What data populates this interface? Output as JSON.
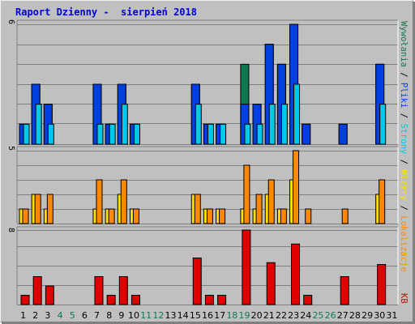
{
  "title": "Raport Dzienny -  sierpień 2018",
  "colors": {
    "background": "#c0c0c0",
    "title": "#0000d8",
    "wizyty": "#1e6e4e",
    "strony": "#00c8e8",
    "pliki": "#0040e0",
    "wywolania": "#0f7a4e",
    "lokalizacje": "#ffe000",
    "kb": "#e00000",
    "orange": "#ff8800"
  },
  "side_labels": {
    "wywolania": "Wywołania",
    "pliki": "Pliki",
    "strony": "Strony",
    "wizyty": "Wizyty",
    "lokalizacje": "Lokalizacje",
    "kb": "KB",
    "sep": "/"
  },
  "chart_data": [
    {
      "type": "bar",
      "panel": "top",
      "ymax_label": "6",
      "ylim": [
        0,
        6
      ],
      "categories": [
        "1",
        "2",
        "3",
        "4",
        "5",
        "6",
        "7",
        "8",
        "9",
        "10",
        "11",
        "12",
        "13",
        "14",
        "15",
        "16",
        "17",
        "18",
        "19",
        "20",
        "21",
        "22",
        "23",
        "24",
        "25",
        "26",
        "27",
        "28",
        "29",
        "30",
        "31"
      ],
      "weekend_days": [
        "4",
        "5",
        "11",
        "12",
        "18",
        "19",
        "25",
        "26"
      ],
      "series": [
        {
          "name": "Wywołania",
          "values": [
            1,
            3,
            2,
            0,
            0,
            0,
            3,
            1,
            3,
            1,
            0,
            0,
            0,
            0,
            3,
            1,
            1,
            0,
            4,
            2,
            5,
            4,
            6,
            1,
            0,
            0,
            1,
            0,
            0,
            4,
            0
          ]
        },
        {
          "name": "Pliki",
          "values": [
            1,
            3,
            2,
            0,
            0,
            0,
            3,
            1,
            3,
            1,
            0,
            0,
            0,
            0,
            3,
            1,
            1,
            0,
            2,
            2,
            5,
            4,
            6,
            1,
            0,
            0,
            1,
            0,
            0,
            4,
            0
          ]
        },
        {
          "name": "Strony",
          "values": [
            1,
            2,
            1,
            0,
            0,
            0,
            1,
            1,
            2,
            1,
            0,
            0,
            0,
            0,
            2,
            1,
            1,
            0,
            1,
            1,
            2,
            2,
            3,
            0,
            0,
            0,
            0,
            0,
            0,
            2,
            0
          ]
        }
      ]
    },
    {
      "type": "bar",
      "panel": "middle",
      "ymax_label": "5",
      "ylim": [
        0,
        5
      ],
      "categories": [
        "1",
        "2",
        "3",
        "4",
        "5",
        "6",
        "7",
        "8",
        "9",
        "10",
        "11",
        "12",
        "13",
        "14",
        "15",
        "16",
        "17",
        "18",
        "19",
        "20",
        "21",
        "22",
        "23",
        "24",
        "25",
        "26",
        "27",
        "28",
        "29",
        "30",
        "31"
      ],
      "series": [
        {
          "name": "Wizyty",
          "values": [
            1,
            2,
            2,
            0,
            0,
            0,
            3,
            1,
            3,
            1,
            0,
            0,
            0,
            0,
            2,
            1,
            1,
            0,
            4,
            2,
            3,
            1,
            5,
            1,
            0,
            0,
            1,
            0,
            0,
            3,
            0
          ]
        },
        {
          "name": "Lokalizacje",
          "values": [
            1,
            2,
            1,
            0,
            0,
            0,
            1,
            1,
            2,
            1,
            0,
            0,
            0,
            0,
            2,
            1,
            1,
            0,
            1,
            1,
            2,
            1,
            3,
            0,
            0,
            0,
            0,
            0,
            0,
            2,
            0
          ]
        }
      ]
    },
    {
      "type": "bar",
      "panel": "bottom",
      "ymax_label": "8",
      "ylim": [
        0,
        8
      ],
      "categories": [
        "1",
        "2",
        "3",
        "4",
        "5",
        "6",
        "7",
        "8",
        "9",
        "10",
        "11",
        "12",
        "13",
        "14",
        "15",
        "16",
        "17",
        "18",
        "19",
        "20",
        "21",
        "22",
        "23",
        "24",
        "25",
        "26",
        "27",
        "28",
        "29",
        "30",
        "31"
      ],
      "series": [
        {
          "name": "KB",
          "values": [
            1,
            3,
            2,
            0,
            0,
            0,
            3,
            1,
            3,
            1,
            0,
            0,
            0,
            0,
            5,
            1,
            1,
            0,
            8,
            0,
            4.5,
            0,
            6.5,
            1,
            0,
            0,
            3,
            0,
            0,
            4.3,
            0
          ]
        }
      ]
    }
  ]
}
